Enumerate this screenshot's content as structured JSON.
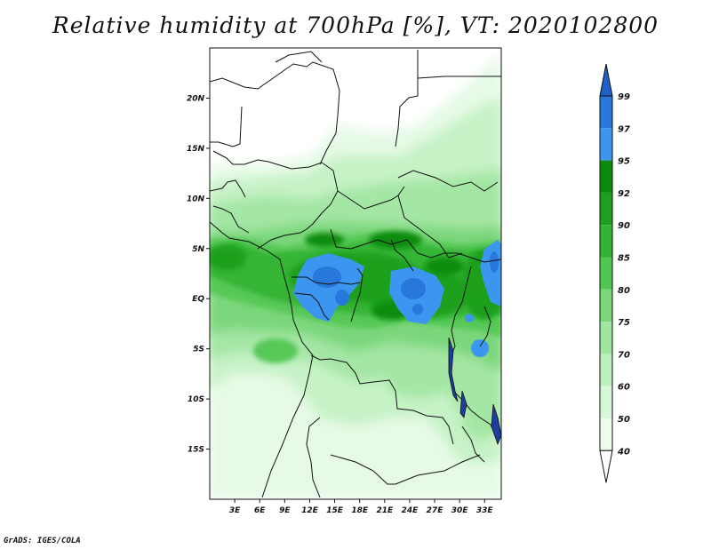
{
  "title": "Relative humidity at 700hPa [%], VT: 2020102800",
  "footer": "GrADS: IGES/COLA",
  "map": {
    "lon_range": [
      0,
      35
    ],
    "lat_range": [
      -20,
      25
    ],
    "lat_ticks": [
      {
        "value": 20,
        "label": "20N"
      },
      {
        "value": 15,
        "label": "15N"
      },
      {
        "value": 10,
        "label": "10N"
      },
      {
        "value": 5,
        "label": "5N"
      },
      {
        "value": 0,
        "label": "EQ"
      },
      {
        "value": -5,
        "label": "5S"
      },
      {
        "value": -10,
        "label": "10S"
      },
      {
        "value": -15,
        "label": "15S"
      }
    ],
    "lon_ticks": [
      {
        "value": 3,
        "label": "3E"
      },
      {
        "value": 6,
        "label": "6E"
      },
      {
        "value": 9,
        "label": "9E"
      },
      {
        "value": 12,
        "label": "12E"
      },
      {
        "value": 15,
        "label": "15E"
      },
      {
        "value": 18,
        "label": "18E"
      },
      {
        "value": 21,
        "label": "21E"
      },
      {
        "value": 24,
        "label": "24E"
      },
      {
        "value": 27,
        "label": "27E"
      },
      {
        "value": 30,
        "label": "30E"
      },
      {
        "value": 33,
        "label": "33E"
      }
    ]
  },
  "colorbar": {
    "levels": [
      "99",
      "97",
      "95",
      "92",
      "90",
      "85",
      "80",
      "75",
      "70",
      "60",
      "50",
      "40"
    ],
    "colors": [
      "#1e5fc8",
      "#2878dc",
      "#3c96f0",
      "#0a8c0a",
      "#1ea01e",
      "#32b432",
      "#50c850",
      "#78d878",
      "#a0e6a0",
      "#bef0be",
      "#d6f8d6",
      "#eefcee"
    ],
    "top_color": "#1e5fc8",
    "bottom_color": "#ffffff"
  }
}
